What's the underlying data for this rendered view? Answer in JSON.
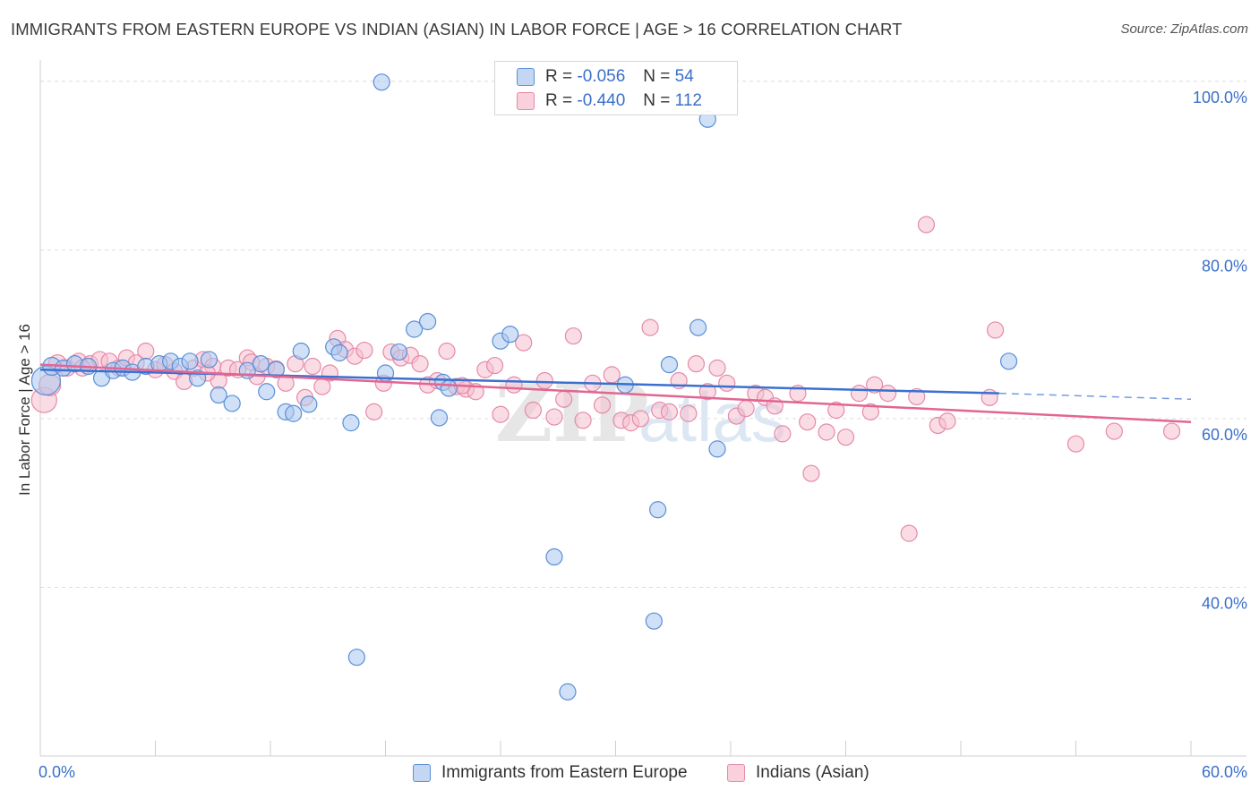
{
  "header": {
    "title": "IMMIGRANTS FROM EASTERN EUROPE VS INDIAN (ASIAN) IN LABOR FORCE | AGE > 16 CORRELATION CHART",
    "source": "Source: ZipAtlas.com"
  },
  "watermark": {
    "part1": "ZIP",
    "part2": "atlas"
  },
  "colors": {
    "blue_fill": "#aac7ee",
    "blue_stroke": "#5a8fd8",
    "blue_line": "#3a70cf",
    "pink_fill": "#f6bfd0",
    "pink_stroke": "#e68aa8",
    "pink_line": "#e26592",
    "tick_label": "#3a6fc9",
    "grid": "#dcdcdc"
  },
  "legend": {
    "series": [
      {
        "r_label": "R =",
        "r_value": "-0.056",
        "n_label": "N =",
        "n_value": "54"
      },
      {
        "r_label": "R =",
        "r_value": "-0.440",
        "n_label": "N =",
        "n_value": "112"
      }
    ]
  },
  "chart_data": {
    "type": "scatter",
    "title": "IMMIGRANTS FROM EASTERN EUROPE VS INDIAN (ASIAN) IN LABOR FORCE | AGE > 16 CORRELATION CHART",
    "xlabel": "",
    "ylabel": "In Labor Force | Age > 16",
    "xlim": [
      0,
      60
    ],
    "ylim": [
      20,
      102
    ],
    "x_tick_labels": [
      {
        "value": 0,
        "label": "0.0%"
      },
      {
        "value": 60,
        "label": "60.0%"
      }
    ],
    "y_tick_labels": [
      {
        "value": 100,
        "label": "100.0%"
      },
      {
        "value": 80,
        "label": "80.0%"
      },
      {
        "value": 60,
        "label": "60.0%"
      },
      {
        "value": 40,
        "label": "40.0%"
      }
    ],
    "x_minor_ticks": [
      6,
      12,
      18,
      24,
      30,
      36,
      42,
      48,
      54,
      60
    ],
    "grid": "horizontal dashed",
    "legend_placement": "top-center",
    "series": [
      {
        "name": "Immigrants from Eastern Europe",
        "r": -0.056,
        "n": 54,
        "trend": {
          "x0": 0,
          "y0": 65.8,
          "x1": 50,
          "y1": 63.0,
          "dashed_to_x": 60,
          "dashed_to_y": 62.3
        },
        "points": [
          [
            0.3,
            64.5,
            16
          ],
          [
            0.6,
            66.2,
            10
          ],
          [
            1.2,
            66.0,
            9
          ],
          [
            1.8,
            66.5,
            9
          ],
          [
            2.5,
            66.2,
            9
          ],
          [
            3.2,
            64.8,
            9
          ],
          [
            3.8,
            65.7,
            9
          ],
          [
            4.3,
            66.0,
            9
          ],
          [
            4.8,
            65.5,
            9
          ],
          [
            5.5,
            66.2,
            9
          ],
          [
            6.2,
            66.5,
            9
          ],
          [
            6.8,
            66.8,
            9
          ],
          [
            7.3,
            66.2,
            9
          ],
          [
            7.8,
            66.8,
            9
          ],
          [
            8.2,
            64.8,
            9
          ],
          [
            8.8,
            67.0,
            9
          ],
          [
            9.3,
            62.8,
            9
          ],
          [
            10.0,
            61.8,
            9
          ],
          [
            10.8,
            65.7,
            9
          ],
          [
            11.5,
            66.5,
            9
          ],
          [
            11.8,
            63.2,
            9
          ],
          [
            12.3,
            65.8,
            9
          ],
          [
            12.8,
            60.8,
            9
          ],
          [
            13.2,
            60.6,
            9
          ],
          [
            13.6,
            68.0,
            9
          ],
          [
            14.0,
            61.7,
            9
          ],
          [
            15.3,
            68.5,
            9
          ],
          [
            15.6,
            67.8,
            9
          ],
          [
            16.2,
            59.5,
            9
          ],
          [
            16.5,
            31.7,
            9
          ],
          [
            17.8,
            99.9,
            9
          ],
          [
            18.0,
            65.4,
            9
          ],
          [
            18.7,
            67.9,
            9
          ],
          [
            19.5,
            70.6,
            9
          ],
          [
            20.2,
            71.5,
            9
          ],
          [
            20.8,
            60.1,
            9
          ],
          [
            21.0,
            64.3,
            9
          ],
          [
            21.3,
            63.6,
            9
          ],
          [
            24.0,
            69.2,
            9
          ],
          [
            24.5,
            70.0,
            9
          ],
          [
            26.8,
            43.6,
            9
          ],
          [
            27.5,
            27.6,
            9
          ],
          [
            30.5,
            64.0,
            9
          ],
          [
            32.0,
            36.0,
            9
          ],
          [
            32.2,
            49.2,
            9
          ],
          [
            32.8,
            66.4,
            9
          ],
          [
            34.3,
            70.8,
            9
          ],
          [
            34.8,
            95.5,
            9
          ],
          [
            35.3,
            56.4,
            9
          ],
          [
            50.5,
            66.8,
            9
          ]
        ]
      },
      {
        "name": "Indians (Asian)",
        "r": -0.44,
        "n": 112,
        "trend": {
          "x0": 0,
          "y0": 66.4,
          "x1": 60,
          "y1": 59.6
        },
        "points": [
          [
            0.2,
            62.2,
            14
          ],
          [
            0.5,
            64.0,
            12
          ],
          [
            0.9,
            66.5,
            10
          ],
          [
            1.4,
            66.0,
            9
          ],
          [
            2.0,
            66.8,
            9
          ],
          [
            2.6,
            66.5,
            9
          ],
          [
            3.1,
            67.0,
            9
          ],
          [
            3.6,
            66.8,
            9
          ],
          [
            4.1,
            66.0,
            9
          ],
          [
            4.5,
            67.2,
            9
          ],
          [
            5.0,
            66.6,
            9
          ],
          [
            5.5,
            68.0,
            9
          ],
          [
            6.0,
            65.8,
            9
          ],
          [
            6.5,
            66.4,
            9
          ],
          [
            7.0,
            65.6,
            9
          ],
          [
            7.5,
            64.4,
            9
          ],
          [
            8.0,
            66.0,
            9
          ],
          [
            8.5,
            67.0,
            9
          ],
          [
            9.0,
            66.2,
            9
          ],
          [
            9.3,
            64.5,
            9
          ],
          [
            9.8,
            66.0,
            9
          ],
          [
            10.3,
            65.8,
            9
          ],
          [
            10.8,
            67.2,
            9
          ],
          [
            11.3,
            65.0,
            9
          ],
          [
            11.8,
            66.2,
            9
          ],
          [
            12.3,
            65.9,
            9
          ],
          [
            12.8,
            64.2,
            9
          ],
          [
            13.3,
            66.5,
            9
          ],
          [
            13.8,
            62.5,
            9
          ],
          [
            14.2,
            66.2,
            9
          ],
          [
            14.7,
            63.8,
            9
          ],
          [
            15.1,
            65.4,
            9
          ],
          [
            15.5,
            69.5,
            9
          ],
          [
            15.9,
            68.2,
            9
          ],
          [
            16.4,
            67.4,
            9
          ],
          [
            16.9,
            68.1,
            9
          ],
          [
            17.4,
            60.8,
            9
          ],
          [
            17.9,
            64.2,
            9
          ],
          [
            18.3,
            67.9,
            9
          ],
          [
            18.8,
            67.2,
            9
          ],
          [
            19.3,
            67.5,
            9
          ],
          [
            19.8,
            66.5,
            9
          ],
          [
            20.2,
            64.0,
            9
          ],
          [
            20.7,
            64.5,
            9
          ],
          [
            21.2,
            68.0,
            9
          ],
          [
            21.7,
            63.8,
            9
          ],
          [
            22.2,
            63.5,
            9
          ],
          [
            22.7,
            63.2,
            9
          ],
          [
            23.2,
            65.8,
            9
          ],
          [
            23.7,
            66.3,
            9
          ],
          [
            24.0,
            60.5,
            9
          ],
          [
            24.7,
            64.0,
            9
          ],
          [
            25.2,
            69.0,
            9
          ],
          [
            25.7,
            61.0,
            9
          ],
          [
            26.3,
            64.5,
            9
          ],
          [
            26.8,
            60.2,
            9
          ],
          [
            27.3,
            62.3,
            9
          ],
          [
            27.8,
            69.8,
            9
          ],
          [
            28.3,
            59.8,
            9
          ],
          [
            28.8,
            64.2,
            9
          ],
          [
            29.3,
            61.6,
            9
          ],
          [
            29.8,
            65.2,
            9
          ],
          [
            30.3,
            59.8,
            9
          ],
          [
            30.8,
            59.5,
            9
          ],
          [
            31.3,
            60.0,
            9
          ],
          [
            31.8,
            70.8,
            9
          ],
          [
            32.3,
            61.0,
            9
          ],
          [
            32.8,
            60.8,
            9
          ],
          [
            33.3,
            64.5,
            9
          ],
          [
            33.8,
            60.6,
            9
          ],
          [
            34.2,
            66.5,
            9
          ],
          [
            34.8,
            63.2,
            9
          ],
          [
            35.3,
            66.0,
            9
          ],
          [
            35.8,
            64.2,
            9
          ],
          [
            36.3,
            60.3,
            9
          ],
          [
            36.8,
            61.2,
            9
          ],
          [
            37.3,
            63.0,
            9
          ],
          [
            37.8,
            62.5,
            9
          ],
          [
            38.3,
            61.5,
            9
          ],
          [
            38.7,
            58.2,
            9
          ],
          [
            39.5,
            63.0,
            9
          ],
          [
            40.0,
            59.6,
            9
          ],
          [
            40.2,
            53.5,
            9
          ],
          [
            41.0,
            58.4,
            9
          ],
          [
            41.5,
            61.0,
            9
          ],
          [
            42.0,
            57.8,
            9
          ],
          [
            42.7,
            63.0,
            9
          ],
          [
            43.3,
            60.8,
            9
          ],
          [
            43.5,
            64.0,
            9
          ],
          [
            44.2,
            63.0,
            9
          ],
          [
            45.3,
            46.4,
            9
          ],
          [
            45.7,
            62.6,
            9
          ],
          [
            46.2,
            83.0,
            9
          ],
          [
            46.8,
            59.2,
            9
          ],
          [
            47.3,
            59.7,
            9
          ],
          [
            49.5,
            62.5,
            9
          ],
          [
            49.8,
            70.5,
            9
          ],
          [
            54.0,
            57.0,
            9
          ],
          [
            56.0,
            58.5,
            9
          ],
          [
            59.0,
            58.5,
            9
          ],
          [
            2.2,
            66.0,
            9
          ],
          [
            8.7,
            65.4,
            9
          ],
          [
            22.0,
            63.9,
            9
          ],
          [
            11.0,
            66.7,
            9
          ]
        ]
      }
    ]
  },
  "bottom_legend": {
    "items": [
      {
        "label": "Immigrants from Eastern Europe"
      },
      {
        "label": "Indians (Asian)"
      }
    ]
  }
}
